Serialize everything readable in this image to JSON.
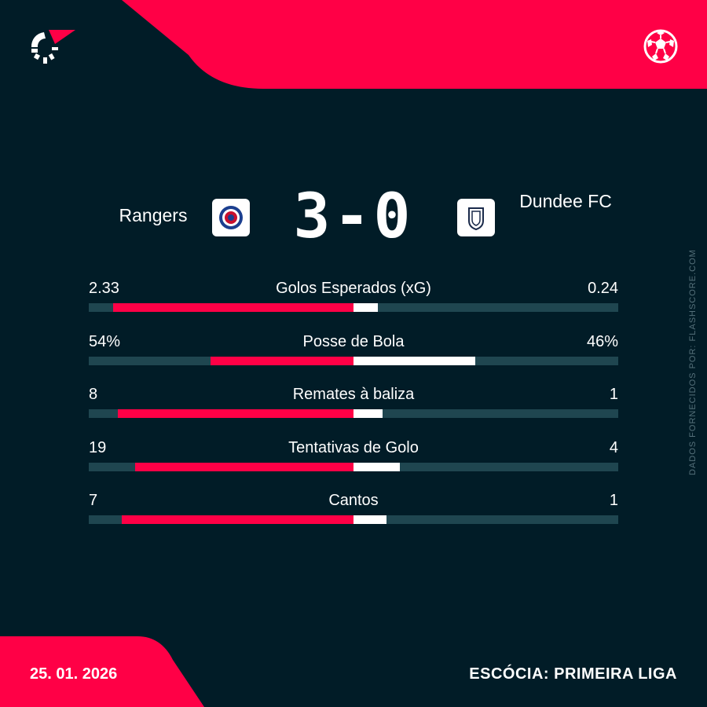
{
  "colors": {
    "background": "#011c27",
    "accent": "#ff0046",
    "track": "#1f4650",
    "away_bar": "#ffffff"
  },
  "header": {
    "logo_icon": "flashscore-logo",
    "sport_icon": "football-icon"
  },
  "match": {
    "home_team": "Rangers",
    "away_team": "Dundee FC",
    "home_score": "3",
    "separator": "-",
    "away_score": "0",
    "home_badge_icon": "rangers-crest",
    "away_badge_icon": "dundee-crest"
  },
  "stats": [
    {
      "label": "Golos Esperados (xG)",
      "home": "2.33",
      "away": "0.24",
      "home_value": 2.33,
      "away_value": 0.24
    },
    {
      "label": "Posse de Bola",
      "home": "54%",
      "away": "46%",
      "home_value": 54,
      "away_value": 46
    },
    {
      "label": "Remates à baliza",
      "home": "8",
      "away": "1",
      "home_value": 8,
      "away_value": 1
    },
    {
      "label": "Tentativas de Golo",
      "home": "19",
      "away": "4",
      "home_value": 19,
      "away_value": 4
    },
    {
      "label": "Cantos",
      "home": "7",
      "away": "1",
      "home_value": 7,
      "away_value": 1
    }
  ],
  "source": "DADOS FORNECIDOS POR: FLASHSCORE.COM",
  "footer": {
    "date": "25. 01. 2026",
    "league": "ESCÓCIA: PRIMEIRA LIGA"
  }
}
